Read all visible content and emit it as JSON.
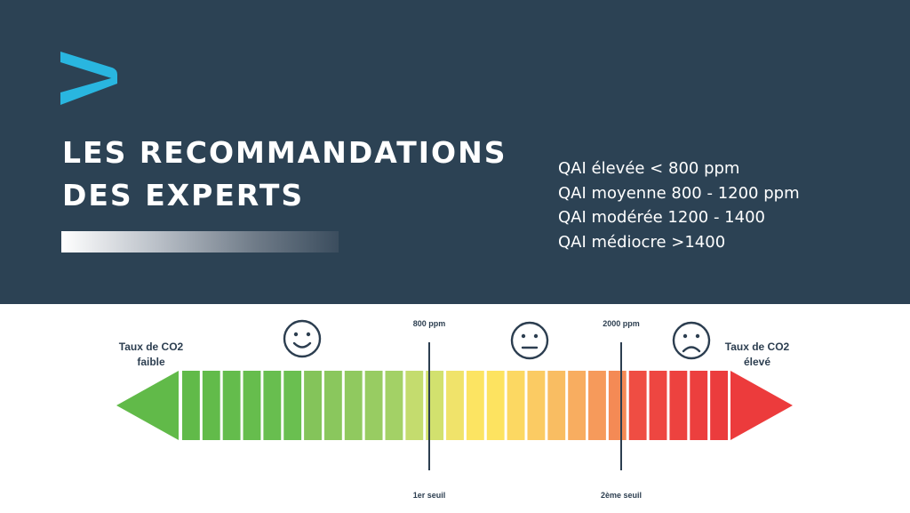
{
  "header": {
    "logo_icon": "play-arrow-logo-icon",
    "title_line1": "LES RECOMMANDATIONS",
    "title_line2": "DES EXPERTS",
    "levels": [
      "QAI élevée < 800 ppm",
      "QAI moyenne 800 - 1200 ppm",
      "QAI modérée 1200 - 1400",
      "QAI médiocre >1400"
    ]
  },
  "scale": {
    "left_label_line1": "Taux de CO2",
    "left_label_line2": "faible",
    "right_label_line1": "Taux de CO2",
    "right_label_line2": "élevé",
    "threshold1_value": "800 ppm",
    "threshold1_name": "1er seuil",
    "threshold2_value": "2000 ppm",
    "threshold2_name": "2ème seuil",
    "faces": [
      {
        "icon": "happy-face-icon"
      },
      {
        "icon": "neutral-face-icon"
      },
      {
        "icon": "sad-face-icon"
      }
    ],
    "segment_colors": [
      "#61ba49",
      "#62bb4a",
      "#64bc4c",
      "#66bd4d",
      "#68be4f",
      "#6abf50",
      "#84c45a",
      "#8ac75d",
      "#90c95f",
      "#98cc62",
      "#a3d166",
      "#c4dc6e",
      "#d2e16e",
      "#f0e36a",
      "#fce462",
      "#fde360",
      "#fcd862",
      "#fbcb63",
      "#f9bd62",
      "#f8ad60",
      "#f69a5b",
      "#f48a55",
      "#ef4d43",
      "#ee4641",
      "#ed423f",
      "#ec3f3e",
      "#eb3c3d"
    ],
    "left_arrow_color": "#61ba49",
    "right_arrow_color": "#ec3b3c",
    "text_color": "#2c3e50"
  }
}
